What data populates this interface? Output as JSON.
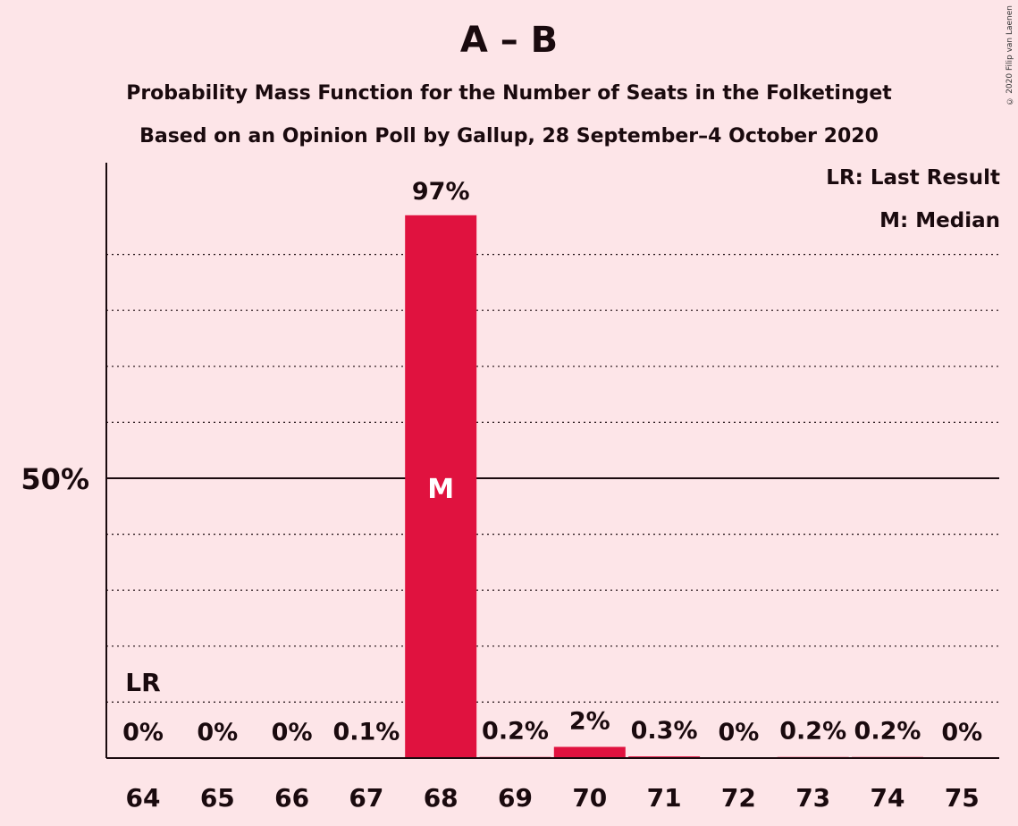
{
  "chart_data": {
    "type": "bar",
    "title": "A – B",
    "subtitle": [
      "Probability Mass Function for the Number of Seats in the Folketinget",
      "Based on an Opinion Poll by Gallup, 28 September–4 October 2020"
    ],
    "categories": [
      "64",
      "65",
      "66",
      "67",
      "68",
      "69",
      "70",
      "71",
      "72",
      "73",
      "74",
      "75"
    ],
    "values": [
      0,
      0,
      0,
      0.1,
      97,
      0.2,
      2,
      0.3,
      0,
      0.2,
      0.2,
      0
    ],
    "value_labels": [
      "0%",
      "0%",
      "0%",
      "0.1%",
      "97%",
      "0.2%",
      "2%",
      "0.3%",
      "0%",
      "0.2%",
      "0.2%",
      "0%"
    ],
    "ylim": [
      0,
      100
    ],
    "y_tick_label": "50%",
    "y_tick_value": 50,
    "gridline_step": 10,
    "last_result_category": "64",
    "last_result_marker": "LR",
    "median_category": "68",
    "median_marker": "M",
    "legend": [
      "LR: Last Result",
      "M: Median"
    ],
    "legend_position": "top-right",
    "bar_color": "#e0123f",
    "copyright": "© 2020 Filip van Laenen"
  }
}
